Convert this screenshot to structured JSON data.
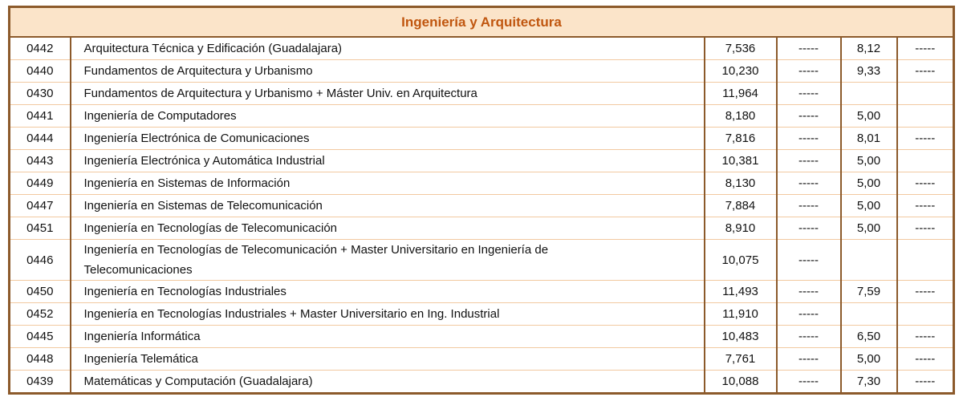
{
  "table": {
    "title": "Ingeniería y Arquitectura",
    "rows": [
      [
        "0442",
        "Arquitectura Técnica y Edificación (Guadalajara)",
        "7,536",
        "-----",
        "8,12",
        "-----"
      ],
      [
        "0440",
        "Fundamentos de Arquitectura y Urbanismo",
        "10,230",
        "-----",
        "9,33",
        "-----"
      ],
      [
        "0430",
        "Fundamentos de Arquitectura y Urbanismo + Máster Univ. en Arquitectura",
        "11,964",
        "-----",
        null,
        null
      ],
      [
        "0441",
        "Ingeniería de Computadores",
        "8,180",
        "-----",
        "5,00",
        null
      ],
      [
        "0444",
        "Ingeniería Electrónica de Comunicaciones",
        "7,816",
        "-----",
        "8,01",
        "-----"
      ],
      [
        "0443",
        "Ingeniería Electrónica y Automática Industrial",
        "10,381",
        "-----",
        "5,00",
        null
      ],
      [
        "0449",
        "Ingeniería en Sistemas de Información",
        "8,130",
        "-----",
        "5,00",
        "-----"
      ],
      [
        "0447",
        "Ingeniería en Sistemas de Telecomunicación",
        "7,884",
        "-----",
        "5,00",
        "-----"
      ],
      [
        "0451",
        "Ingeniería en Tecnologías de Telecomunicación",
        "8,910",
        "-----",
        "5,00",
        "-----"
      ],
      [
        "0446",
        "Ingeniería en Tecnologías de Telecomunicación + Master Universitario en Ingeniería de Telecomunicaciones",
        "10,075",
        "-----",
        null,
        null
      ],
      [
        "0450",
        "Ingeniería en Tecnologías Industriales",
        "11,493",
        "-----",
        "7,59",
        "-----"
      ],
      [
        "0452",
        "Ingeniería en Tecnologías Industriales + Master Universitario en Ing. Industrial",
        "11,910",
        "-----",
        null,
        null
      ],
      [
        "0445",
        "Ingeniería Informática",
        "10,483",
        "-----",
        "6,50",
        "-----"
      ],
      [
        "0448",
        "Ingeniería Telemática",
        "7,761",
        "-----",
        "5,00",
        "-----"
      ],
      [
        "0439",
        "Matemáticas y Computación (Guadalajara)",
        "10,088",
        "-----",
        "7,30",
        "-----"
      ]
    ]
  }
}
